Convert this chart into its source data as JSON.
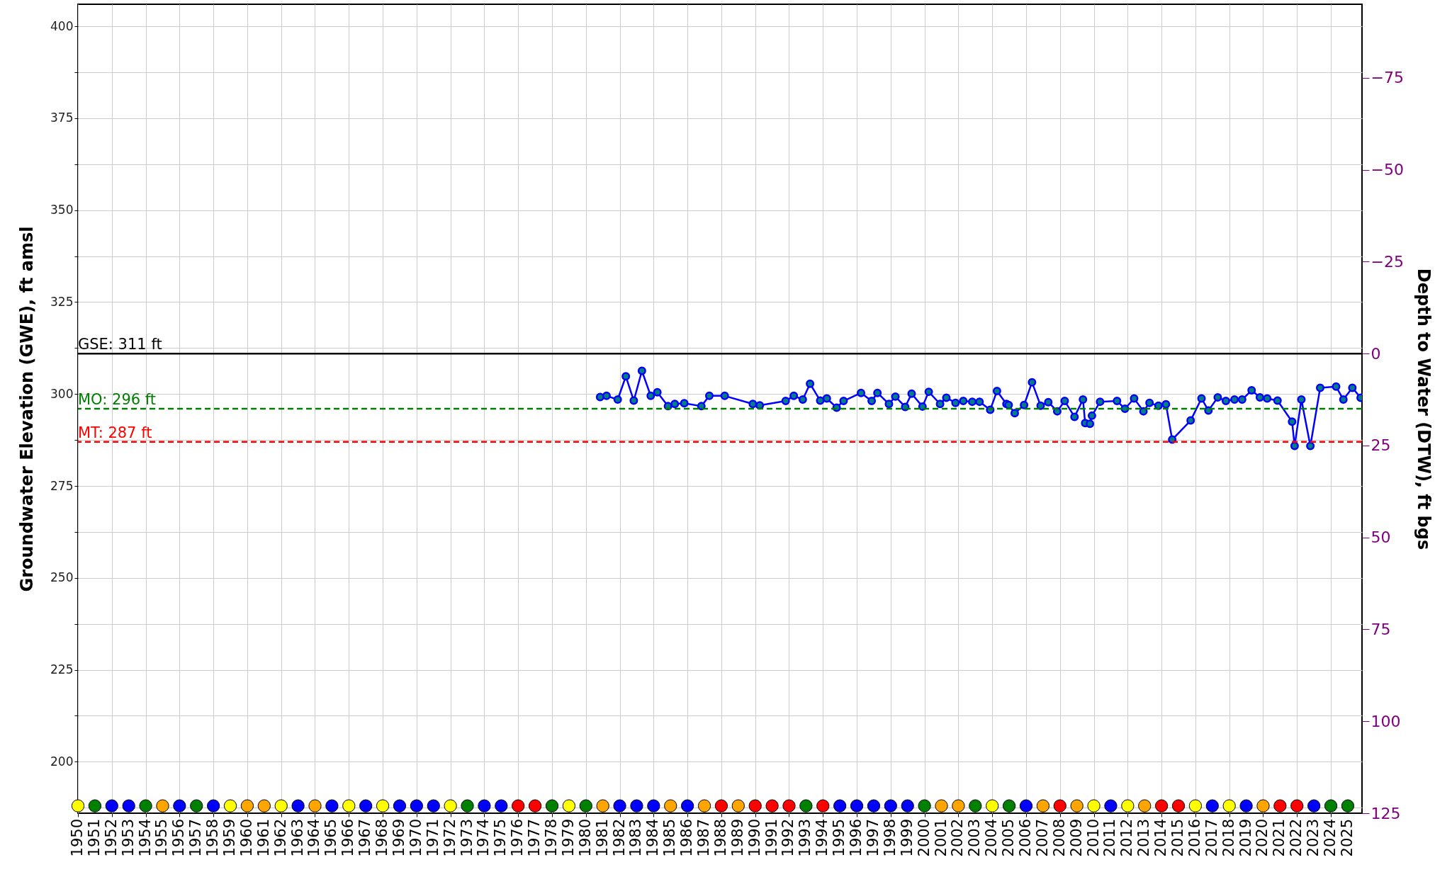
{
  "chart_data": {
    "type": "line",
    "ylabel": "Groundwater Elevation (GWE), ft amsl",
    "y2label": "Depth to Water (DTW), ft bgs",
    "xlim": [
      1950,
      2025.84
    ],
    "ylim": [
      186,
      406
    ],
    "y2lim": [
      125,
      -95
    ],
    "xticks": [
      1950,
      1951,
      1952,
      1953,
      1954,
      1955,
      1956,
      1957,
      1958,
      1959,
      1960,
      1961,
      1962,
      1963,
      1964,
      1965,
      1966,
      1967,
      1968,
      1969,
      1970,
      1971,
      1972,
      1973,
      1974,
      1975,
      1976,
      1977,
      1978,
      1979,
      1980,
      1981,
      1982,
      1983,
      1984,
      1985,
      1986,
      1987,
      1988,
      1989,
      1990,
      1991,
      1992,
      1993,
      1994,
      1995,
      1996,
      1997,
      1998,
      1999,
      2000,
      2001,
      2002,
      2003,
      2004,
      2005,
      2006,
      2007,
      2008,
      2009,
      2010,
      2011,
      2012,
      2013,
      2014,
      2015,
      2016,
      2017,
      2018,
      2019,
      2020,
      2021,
      2022,
      2023,
      2024,
      2025
    ],
    "yticks": [
      {
        "value": 187.5,
        "label": null
      },
      200,
      {
        "value": 212.5,
        "label": null
      },
      225,
      {
        "value": 237.5,
        "label": null
      },
      250,
      {
        "value": 262.5,
        "label": null
      },
      275,
      {
        "value": 287.5,
        "label": null
      },
      300,
      {
        "value": 312.5,
        "label": null
      },
      325,
      {
        "value": 337.5,
        "label": null
      },
      350,
      {
        "value": 362.5,
        "label": null
      },
      375,
      {
        "value": 387.5,
        "label": null
      },
      400
    ],
    "y2ticks": [
      -75,
      -50,
      -25,
      0,
      25,
      50,
      75,
      100,
      125
    ],
    "grid": true,
    "marker": "circle",
    "line_style": "solid",
    "ref_lines": [
      {
        "axis": "y",
        "value": 311,
        "label": "GSE: 311 ft",
        "color": "#000000",
        "line_style": "solid"
      },
      {
        "axis": "y",
        "value": 296,
        "label": "MO: 296 ft",
        "color": "#008000",
        "line_style": "dashed"
      },
      {
        "axis": "y",
        "value": 287,
        "label": "MT: 287 ft",
        "color": "#ff0000",
        "line_style": "dashed"
      }
    ],
    "series": [
      {
        "type": "line",
        "color": "#0000ff",
        "x": [
          1980.84,
          1981.22,
          1981.88,
          1982.36,
          1982.83,
          1983.31,
          1983.83,
          1984.22,
          1984.85,
          1985.25,
          1985.81,
          1986.82,
          1987.29,
          1988.2,
          1989.86,
          1990.27,
          1991.8,
          1992.28,
          1992.81,
          1993.24,
          1993.84,
          1994.23,
          1994.81,
          1995.22,
          1996.25,
          1996.88,
          1997.22,
          1997.9,
          1998.28,
          1998.86,
          1999.24,
          1999.88,
          2000.25,
          2000.92,
          2001.29,
          2001.83,
          2002.29,
          2002.82,
          2003.25,
          2003.88,
          2004.28,
          2004.84,
          2004.97,
          2005.33,
          2005.88,
          2006.35,
          2006.86,
          2007.31,
          2007.84,
          2008.28,
          2008.86,
          2009.36,
          2009.49,
          2009.77,
          2009.89,
          2010.37,
          2011.37,
          2011.84,
          2012.38,
          2012.93,
          2013.29,
          2013.82,
          2014.26,
          2014.63,
          2015.72,
          2016.36,
          2016.77,
          2017.32,
          2017.8,
          2018.31,
          2018.76,
          2019.32,
          2019.81,
          2020.24,
          2020.85,
          2021.71,
          2021.86,
          2022.26,
          2022.79,
          2023.37,
          2024.31,
          2024.74,
          2025.27,
          2025.76
        ],
        "values": [
          299.2,
          299.5,
          298.5,
          304.8,
          298.2,
          306.3,
          299.5,
          300.5,
          296.7,
          297.3,
          297.5,
          296.7,
          299.5,
          299.5,
          297.3,
          296.9,
          298.1,
          299.5,
          298.5,
          302.8,
          298.2,
          298.8,
          296.3,
          298.1,
          300.3,
          298.1,
          300.3,
          297.3,
          299.3,
          296.5,
          300.1,
          296.6,
          300.6,
          297.3,
          299.0,
          297.6,
          298.1,
          297.9,
          297.9,
          295.7,
          300.8,
          297.3,
          297.0,
          294.8,
          297.0,
          303.2,
          296.8,
          297.8,
          295.3,
          298.1,
          293.8,
          298.5,
          292.1,
          291.9,
          294.1,
          297.9,
          298.1,
          296.0,
          298.8,
          295.3,
          297.6,
          296.8,
          297.2,
          287.6,
          292.8,
          298.8,
          295.5,
          299.1,
          298.1,
          298.5,
          298.5,
          301.0,
          299.1,
          298.8,
          298.2,
          292.5,
          285.9,
          298.5,
          285.9,
          301.7,
          302.0,
          298.5,
          301.7,
          299.0
        ]
      },
      {
        "type": "scatter",
        "x": [
          1950,
          1951,
          1952,
          1953,
          1954,
          1955,
          1956,
          1957,
          1958,
          1959,
          1960,
          1961,
          1962,
          1963,
          1964,
          1965,
          1966,
          1967,
          1968,
          1969,
          1970,
          1971,
          1972,
          1973,
          1974,
          1975,
          1976,
          1977,
          1978,
          1979,
          1980,
          1981,
          1982,
          1983,
          1984,
          1985,
          1986,
          1987,
          1988,
          1989,
          1990,
          1991,
          1992,
          1993,
          1994,
          1995,
          1996,
          1997,
          1998,
          1999,
          2000,
          2001,
          2002,
          2003,
          2004,
          2005,
          2006,
          2007,
          2008,
          2009,
          2010,
          2011,
          2012,
          2013,
          2014,
          2015,
          2016,
          2017,
          2018,
          2019,
          2020,
          2021,
          2022,
          2023,
          2024,
          2025
        ],
        "values": [
          188,
          188,
          188,
          188,
          188,
          188,
          188,
          188,
          188,
          188,
          188,
          188,
          188,
          188,
          188,
          188,
          188,
          188,
          188,
          188,
          188,
          188,
          188,
          188,
          188,
          188,
          188,
          188,
          188,
          188,
          188,
          188,
          188,
          188,
          188,
          188,
          188,
          188,
          188,
          188,
          188,
          188,
          188,
          188,
          188,
          188,
          188,
          188,
          188,
          188,
          188,
          188,
          188,
          188,
          188,
          188,
          188,
          188,
          188,
          188,
          188,
          188,
          188,
          188,
          188,
          188,
          188,
          188,
          188,
          188,
          188,
          188,
          188,
          188,
          188,
          188
        ],
        "colors": [
          "#ffff00",
          "#008000",
          "#0000ff",
          "#0000ff",
          "#008000",
          "#ffa500",
          "#0000ff",
          "#008000",
          "#0000ff",
          "#ffff00",
          "#ffa500",
          "#ffa500",
          "#ffff00",
          "#0000ff",
          "#ffa500",
          "#0000ff",
          "#ffff00",
          "#0000ff",
          "#ffff00",
          "#0000ff",
          "#0000ff",
          "#0000ff",
          "#ffff00",
          "#008000",
          "#0000ff",
          "#0000ff",
          "#ff0000",
          "#ff0000",
          "#008000",
          "#ffff00",
          "#008000",
          "#ffa500",
          "#0000ff",
          "#0000ff",
          "#0000ff",
          "#ffa500",
          "#0000ff",
          "#ffa500",
          "#ff0000",
          "#ffa500",
          "#ff0000",
          "#ff0000",
          "#ff0000",
          "#008000",
          "#ff0000",
          "#0000ff",
          "#0000ff",
          "#0000ff",
          "#0000ff",
          "#0000ff",
          "#008000",
          "#ffa500",
          "#ffa500",
          "#008000",
          "#ffff00",
          "#008000",
          "#0000ff",
          "#ffa500",
          "#ff0000",
          "#ffa500",
          "#ffff00",
          "#0000ff",
          "#ffff00",
          "#ffa500",
          "#ff0000",
          "#ff0000",
          "#ffff00",
          "#0000ff",
          "#ffff00",
          "#0000ff",
          "#ffa500",
          "#ff0000",
          "#ff0000",
          "#0000ff",
          "#008000",
          "#008000"
        ]
      }
    ]
  }
}
